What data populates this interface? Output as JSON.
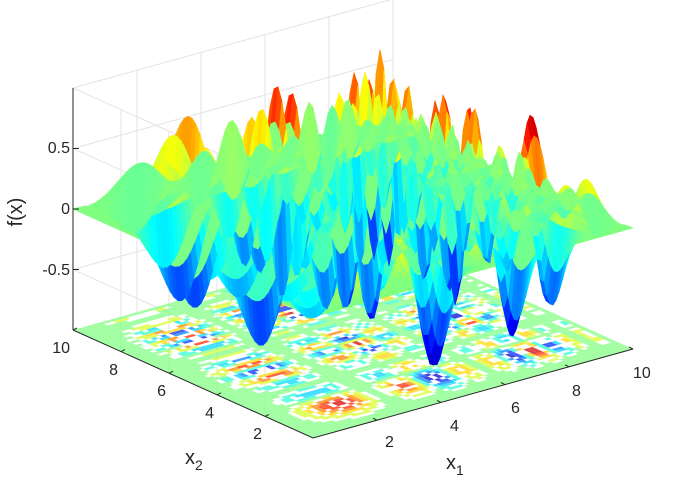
{
  "chart_data": {
    "type": "surface",
    "function_note": "",
    "title": "",
    "xlabel_main": "x",
    "xlabel_sub": "1",
    "ylabel_main": "x",
    "ylabel_sub": "2",
    "zlabel": "f(x)",
    "x_range": [
      0,
      10
    ],
    "y_range": [
      0,
      10
    ],
    "z_range": [
      -1,
      1
    ],
    "x_ticks": [
      2,
      4,
      6,
      8,
      10
    ],
    "y_ticks": [
      2,
      4,
      6,
      8,
      10
    ],
    "z_ticks": [
      -0.5,
      0,
      0.5
    ],
    "x_tick_labels": [
      "2",
      "4",
      "6",
      "8",
      "10"
    ],
    "y_tick_labels": [
      "2",
      "4",
      "6",
      "8",
      "10"
    ],
    "z_tick_labels": [
      "-0.5",
      "0",
      "0.5"
    ],
    "colormap": "jet",
    "contour_projection": true,
    "grid": true,
    "colors": {
      "axis": "#262626",
      "grid": "#e3e3e3",
      "background": "#ffffff"
    }
  }
}
